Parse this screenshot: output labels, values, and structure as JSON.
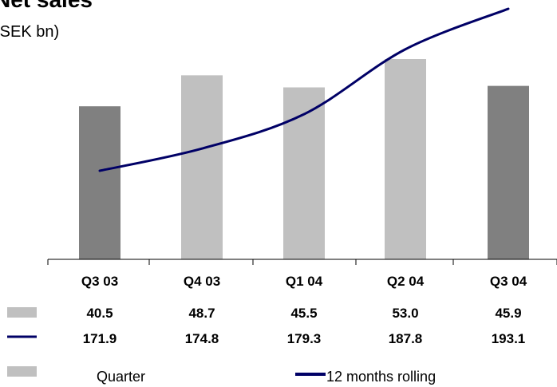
{
  "chart_data": {
    "type": "bar+line",
    "title": "Net sales",
    "subtitle": "(SEK bn)",
    "categories": [
      "Q3 03",
      "Q4 03",
      "Q1 04",
      "Q2 04",
      "Q3 04"
    ],
    "series": [
      {
        "name": "Quarter",
        "type": "bar",
        "values": [
          40.5,
          48.7,
          45.5,
          53.0,
          45.9
        ],
        "labels": [
          "40.5",
          "48.7",
          "45.5",
          "53.0",
          "45.9"
        ],
        "colors": [
          "#808080",
          "#c0c0c0",
          "#c0c0c0",
          "#c0c0c0",
          "#808080"
        ]
      },
      {
        "name": "12 months rolling",
        "type": "line",
        "values": [
          171.9,
          174.8,
          179.3,
          187.8,
          193.1
        ],
        "labels": [
          "171.9",
          "174.8",
          "179.3",
          "187.8",
          "193.1"
        ],
        "color": "#000066"
      }
    ],
    "legend": [
      {
        "label": "Quarter",
        "swatch_color": "#c0c0c0"
      },
      {
        "label": "12 months rolling",
        "swatch_color": "#000066"
      }
    ],
    "grid": false,
    "legend_position": "bottom"
  }
}
